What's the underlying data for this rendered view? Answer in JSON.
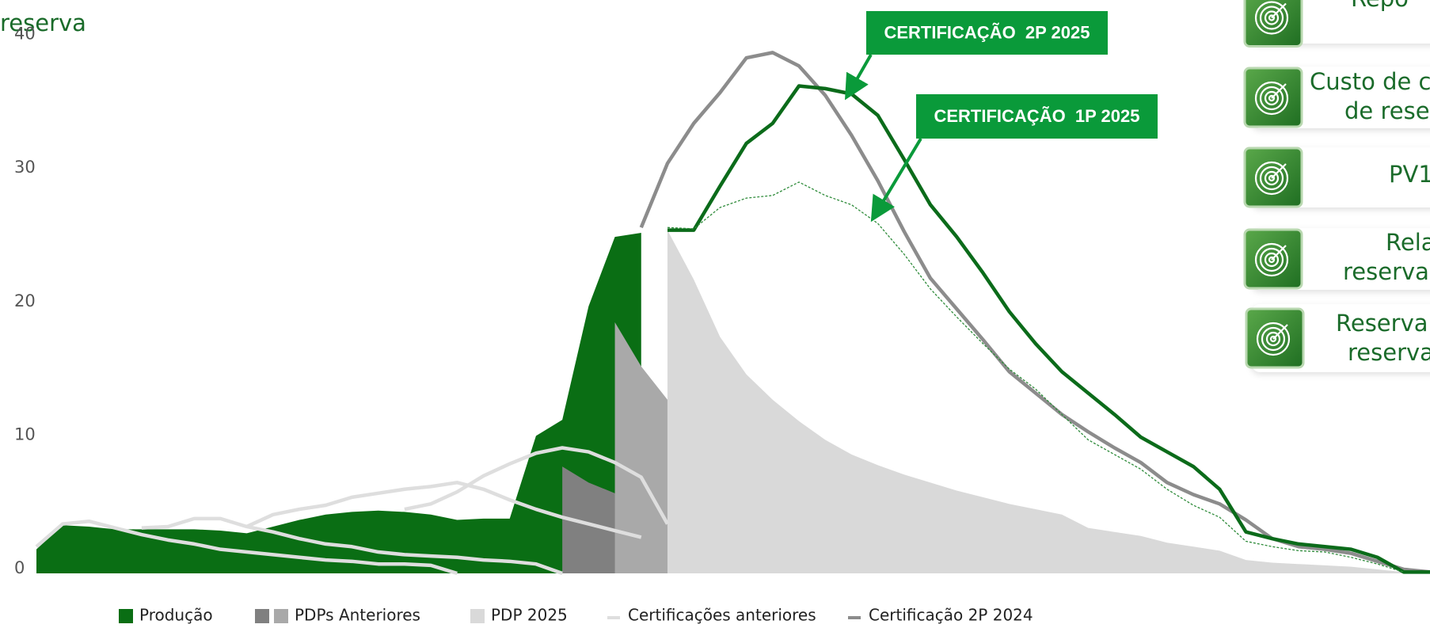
{
  "chart_data": {
    "type": "area",
    "x": [
      0,
      1,
      2,
      3,
      4,
      5,
      6,
      7,
      8,
      9,
      10,
      11,
      12,
      13,
      14,
      15,
      16,
      17,
      18,
      19,
      20,
      21,
      22,
      23,
      24,
      25,
      26,
      27,
      28,
      29,
      30,
      31,
      32,
      33,
      34,
      35,
      36,
      37,
      38,
      39,
      40,
      41,
      42,
      43,
      44,
      45,
      46,
      47,
      48,
      49,
      50,
      51,
      52,
      53
    ],
    "xlim": [
      0,
      53
    ],
    "ylim": [
      0,
      40
    ],
    "yticks": [
      0,
      10,
      20,
      30,
      40
    ],
    "legend": "bottom",
    "series": [
      {
        "name": "Produção",
        "kind": "area",
        "color": "#0a6e14",
        "values": [
          1.8,
          3.6,
          3.5,
          3.3,
          3.3,
          3.3,
          3.3,
          3.2,
          3.0,
          3.5,
          4.0,
          4.4,
          4.6,
          4.7,
          4.6,
          4.4,
          4.0,
          4.1,
          4.1,
          10.3,
          11.5,
          20.0,
          25.2,
          25.5,
          null,
          null,
          null,
          null,
          null,
          null,
          null,
          null,
          null,
          null,
          null,
          null,
          null,
          null,
          null,
          null,
          null,
          null,
          null,
          null,
          null,
          null,
          null,
          null,
          null,
          null,
          null,
          null,
          null,
          null
        ]
      },
      {
        "name": "PDPs Anteriores",
        "kind": "area",
        "colors": [
          "#808080",
          "#a9a9a9"
        ],
        "parts": [
          [
            null,
            null,
            null,
            null,
            null,
            null,
            null,
            null,
            null,
            null,
            null,
            null,
            null,
            null,
            null,
            null,
            null,
            null,
            null,
            null,
            8.0,
            6.8,
            6.0,
            5.3,
            3.5,
            null,
            null,
            null,
            null,
            null,
            null,
            null,
            null,
            null,
            null,
            null,
            null,
            null,
            null,
            null,
            null,
            null,
            null,
            null,
            null,
            null,
            null,
            null,
            null,
            null,
            null,
            null,
            null,
            null
          ],
          [
            null,
            null,
            null,
            null,
            null,
            null,
            null,
            null,
            null,
            null,
            null,
            null,
            null,
            null,
            null,
            null,
            null,
            null,
            null,
            null,
            null,
            null,
            18.8,
            15.5,
            13.0,
            null,
            null,
            null,
            null,
            null,
            null,
            null,
            null,
            null,
            null,
            null,
            null,
            null,
            null,
            null,
            null,
            null,
            null,
            null,
            null,
            null,
            null,
            null,
            null,
            null,
            null,
            null,
            null,
            null
          ]
        ]
      },
      {
        "name": "PDP 2025",
        "kind": "area",
        "color": "#d9d9d9",
        "values": [
          null,
          null,
          null,
          null,
          null,
          null,
          null,
          null,
          null,
          null,
          null,
          null,
          null,
          null,
          null,
          null,
          null,
          null,
          null,
          null,
          null,
          null,
          null,
          null,
          25.7,
          22.0,
          17.7,
          14.9,
          13.0,
          11.4,
          10.0,
          8.9,
          8.1,
          7.4,
          6.8,
          6.2,
          5.7,
          5.2,
          4.8,
          4.4,
          3.4,
          3.1,
          2.8,
          2.3,
          2.0,
          1.7,
          1.0,
          0.8,
          0.7,
          0.6,
          0.5,
          0.3,
          0.1,
          null
        ]
      },
      {
        "name": "Certificações anteriores",
        "kind": "line",
        "color": "#dedede",
        "parts": [
          [
            2.0,
            3.7,
            3.9,
            3.4,
            2.9,
            2.5,
            2.2,
            1.8,
            1.6,
            1.4,
            1.2,
            1.0,
            0.9,
            0.7,
            0.7,
            0.6,
            0,
            null,
            null,
            null,
            null,
            null,
            null,
            null,
            null,
            null,
            null,
            null,
            null,
            null,
            null,
            null,
            null,
            null,
            null,
            null,
            null,
            null,
            null,
            null,
            null,
            null,
            null,
            null,
            null,
            null,
            null,
            null,
            null,
            null,
            null,
            null,
            null,
            null
          ],
          [
            null,
            null,
            null,
            null,
            3.4,
            3.5,
            4.1,
            4.1,
            3.5,
            3.1,
            2.6,
            2.2,
            2.0,
            1.6,
            1.4,
            1.3,
            1.2,
            1.0,
            0.9,
            0.7,
            0,
            null,
            null,
            null,
            null,
            null,
            null,
            null,
            null,
            null,
            null,
            null,
            null,
            null,
            null,
            null,
            null,
            null,
            null,
            null,
            null,
            null,
            null,
            null,
            null,
            null,
            null,
            null,
            null,
            null,
            null,
            null,
            null,
            null
          ],
          [
            null,
            null,
            null,
            null,
            null,
            null,
            null,
            null,
            3.5,
            4.4,
            4.8,
            5.1,
            5.7,
            6.0,
            6.3,
            6.5,
            6.8,
            6.3,
            5.5,
            4.8,
            4.2,
            3.7,
            3.2,
            2.7,
            null,
            null,
            null,
            null,
            null,
            null,
            null,
            null,
            null,
            null,
            null,
            null,
            null,
            null,
            null,
            null,
            null,
            null,
            null,
            null,
            null,
            null,
            null,
            null,
            null,
            null,
            null,
            null,
            null,
            null
          ],
          [
            null,
            null,
            null,
            null,
            null,
            null,
            null,
            null,
            null,
            null,
            null,
            null,
            null,
            null,
            4.8,
            5.2,
            6.1,
            7.3,
            8.2,
            9.0,
            9.4,
            9.1,
            8.3,
            7.2,
            3.7,
            null,
            null,
            null,
            null,
            null,
            null,
            null,
            null,
            null,
            null,
            null,
            null,
            null,
            null,
            null,
            null,
            null,
            null,
            null,
            null,
            null,
            null,
            null,
            null,
            null,
            null,
            null,
            null,
            null
          ]
        ]
      },
      {
        "name": "Certificação 2P 2024",
        "kind": "line",
        "color": "#8c8c8c",
        "values": [
          null,
          null,
          null,
          null,
          null,
          null,
          null,
          null,
          null,
          null,
          null,
          null,
          null,
          null,
          null,
          null,
          null,
          null,
          null,
          null,
          null,
          null,
          null,
          25.9,
          30.7,
          33.7,
          36.0,
          38.6,
          39.0,
          38.0,
          35.8,
          32.8,
          29.4,
          25.6,
          22.1,
          19.8,
          17.5,
          15.1,
          13.5,
          11.9,
          10.6,
          9.4,
          8.3,
          6.8,
          5.9,
          5.2,
          4.0,
          2.6,
          2.0,
          1.8,
          1.5,
          0.9,
          0.3,
          0.1
        ]
      },
      {
        "label": "CERTIFICAÇÃO  2P 2025",
        "kind": "line",
        "color": "#0b6b1a",
        "values": [
          null,
          null,
          null,
          null,
          null,
          null,
          null,
          null,
          null,
          null,
          null,
          null,
          null,
          null,
          null,
          null,
          null,
          null,
          null,
          null,
          null,
          null,
          null,
          null,
          25.7,
          25.7,
          29.0,
          32.2,
          33.7,
          36.5,
          36.3,
          35.9,
          34.3,
          31.0,
          27.6,
          25.2,
          22.5,
          19.6,
          17.2,
          15.1,
          13.5,
          11.9,
          10.2,
          9.1,
          8.0,
          6.3,
          3.1,
          2.6,
          2.2,
          2.0,
          1.8,
          1.2,
          0.1,
          0.1
        ]
      },
      {
        "label": "CERTIFICAÇÃO  1P 2025",
        "kind": "line",
        "color": "#2e8b3a",
        "dashed": true,
        "values": [
          null,
          null,
          null,
          null,
          null,
          null,
          null,
          null,
          null,
          null,
          null,
          null,
          null,
          null,
          null,
          null,
          null,
          null,
          null,
          null,
          null,
          null,
          null,
          null,
          25.9,
          25.8,
          27.4,
          28.1,
          28.3,
          29.3,
          28.3,
          27.6,
          26.2,
          23.9,
          21.3,
          19.2,
          17.2,
          15.3,
          13.8,
          11.9,
          10.0,
          8.9,
          7.8,
          6.3,
          5.1,
          4.2,
          2.4,
          2.0,
          1.7,
          1.6,
          1.2,
          0.7,
          0.1,
          null
        ]
      }
    ]
  },
  "cards": [
    [
      "Repo",
      "reserva"
    ],
    [
      "Custo de c",
      "de rese"
    ],
    [
      "PV1"
    ],
    [
      "Rela",
      "reserva"
    ],
    [
      "Reserva",
      "reserva"
    ]
  ]
}
